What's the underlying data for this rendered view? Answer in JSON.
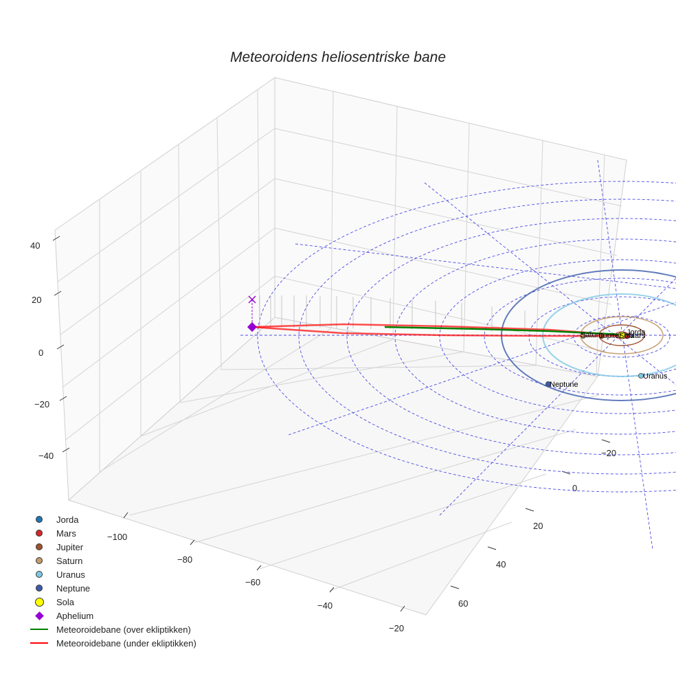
{
  "chart_data": {
    "type": "scatter",
    "title": "Meteoroidens heliosentriske bane",
    "projection": "3d",
    "x_ticks": [
      "−100",
      "−80",
      "−60",
      "−40",
      "−20"
    ],
    "y_ticks": [
      "−20",
      "0",
      "20",
      "40",
      "60"
    ],
    "z_ticks": [
      "40",
      "20",
      "0",
      "−20",
      "−40"
    ],
    "planets": [
      {
        "name": "Jorda",
        "color": "#1f77b4"
      },
      {
        "name": "Mars",
        "color": "#d62728"
      },
      {
        "name": "Jupiter",
        "color": "#a0522d"
      },
      {
        "name": "Saturn",
        "color": "#c49a6c"
      },
      {
        "name": "Uranus",
        "color": "#7ec8e3"
      },
      {
        "name": "Neptune",
        "color": "#3b5bab"
      }
    ],
    "sun": {
      "name": "Sola",
      "color": "#ffff00"
    },
    "aphelium": {
      "name": "Aphelium",
      "color": "#9400d3"
    },
    "series": [
      {
        "name": "Meteoroidebane (over ekliptikken)",
        "color": "#008000"
      },
      {
        "name": "Meteoroidebane (under ekliptikken)",
        "color": "#ff0000"
      }
    ],
    "grid": true,
    "legend_position": "bottom-left"
  }
}
